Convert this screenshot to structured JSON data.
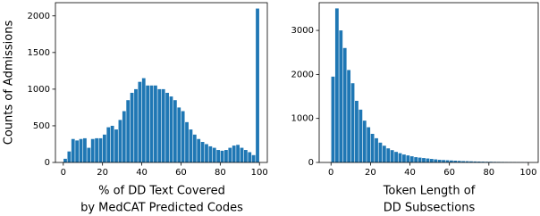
{
  "chart_data": [
    {
      "type": "histogram",
      "ylabel": "Counts of Admissions",
      "xlabel": [
        "% of DD Text Covered",
        "by MedCAT Predicted Codes"
      ],
      "color": "#1f77b4",
      "bins": [
        0,
        2,
        4,
        6,
        8,
        10,
        12,
        14,
        16,
        18,
        20,
        22,
        24,
        26,
        28,
        30,
        32,
        34,
        36,
        38,
        40,
        42,
        44,
        46,
        48,
        50,
        52,
        54,
        56,
        58,
        60,
        62,
        64,
        66,
        68,
        70,
        72,
        74,
        76,
        78,
        80,
        82,
        84,
        86,
        88,
        90,
        92,
        94,
        96,
        98,
        100
      ],
      "counts": [
        50,
        150,
        320,
        300,
        320,
        330,
        200,
        320,
        330,
        330,
        380,
        480,
        500,
        450,
        580,
        700,
        850,
        950,
        1000,
        1100,
        1150,
        1050,
        1050,
        1050,
        1000,
        1000,
        950,
        900,
        850,
        750,
        700,
        550,
        450,
        380,
        320,
        280,
        250,
        220,
        200,
        170,
        160,
        170,
        200,
        230,
        240,
        200,
        170,
        140,
        100,
        2100
      ],
      "xlim": [
        -4,
        104
      ],
      "ylim": [
        0,
        2180
      ],
      "xticks": [
        0,
        20,
        40,
        60,
        80,
        100
      ],
      "yticks": [
        0,
        500,
        1000,
        1500,
        2000
      ]
    },
    {
      "type": "histogram",
      "xlabel": [
        "Token Length of",
        "DD Subsections"
      ],
      "color": "#1f77b4",
      "bins": [
        0,
        2,
        4,
        6,
        8,
        10,
        12,
        14,
        16,
        18,
        20,
        22,
        24,
        26,
        28,
        30,
        32,
        34,
        36,
        38,
        40,
        42,
        44,
        46,
        48,
        50,
        52,
        54,
        56,
        58,
        60,
        62,
        64,
        66,
        68,
        70,
        72,
        74,
        76,
        78,
        80,
        82,
        84,
        86,
        88,
        90,
        92,
        94,
        96,
        98,
        100
      ],
      "counts": [
        1950,
        3500,
        3000,
        2600,
        2100,
        1800,
        1400,
        1200,
        950,
        800,
        650,
        550,
        450,
        380,
        320,
        280,
        240,
        210,
        180,
        160,
        140,
        120,
        110,
        100,
        90,
        80,
        70,
        60,
        55,
        50,
        45,
        40,
        35,
        30,
        28,
        25,
        22,
        20,
        18,
        16,
        15,
        13,
        12,
        11,
        10,
        9,
        8,
        7,
        6,
        5
      ],
      "xlim": [
        -6,
        105
      ],
      "ylim": [
        0,
        3630
      ],
      "xticks": [
        0,
        20,
        40,
        60,
        80,
        100
      ],
      "yticks": [
        0,
        1000,
        2000,
        3000
      ]
    }
  ]
}
